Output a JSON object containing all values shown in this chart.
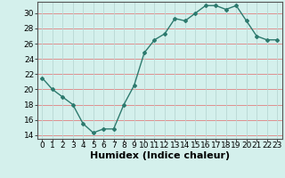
{
  "x": [
    0,
    1,
    2,
    3,
    4,
    5,
    6,
    7,
    8,
    9,
    10,
    11,
    12,
    13,
    14,
    15,
    16,
    17,
    18,
    19,
    20,
    21,
    22,
    23
  ],
  "y": [
    21.5,
    20.0,
    19.0,
    18.0,
    15.5,
    14.3,
    14.8,
    14.8,
    18.0,
    20.5,
    24.8,
    26.5,
    27.3,
    29.3,
    29.0,
    30.0,
    31.0,
    31.0,
    30.5,
    31.0,
    29.0,
    27.0,
    26.5,
    26.5
  ],
  "line_color": "#2d7a6e",
  "marker": "D",
  "marker_size": 2,
  "background_color": "#d4f0ec",
  "grid_color_h": "#e08080",
  "grid_color_v": "#b8d8d4",
  "xlabel": "Humidex (Indice chaleur)",
  "xlim": [
    -0.5,
    23.5
  ],
  "ylim": [
    13.5,
    31.5
  ],
  "yticks": [
    14,
    16,
    18,
    20,
    22,
    24,
    26,
    28,
    30
  ],
  "xtick_labels": [
    "0",
    "1",
    "2",
    "3",
    "4",
    "5",
    "6",
    "7",
    "8",
    "9",
    "10",
    "11",
    "12",
    "13",
    "14",
    "15",
    "16",
    "17",
    "18",
    "19",
    "20",
    "21",
    "22",
    "23"
  ],
  "tick_fontsize": 6.5,
  "xlabel_fontsize": 8
}
